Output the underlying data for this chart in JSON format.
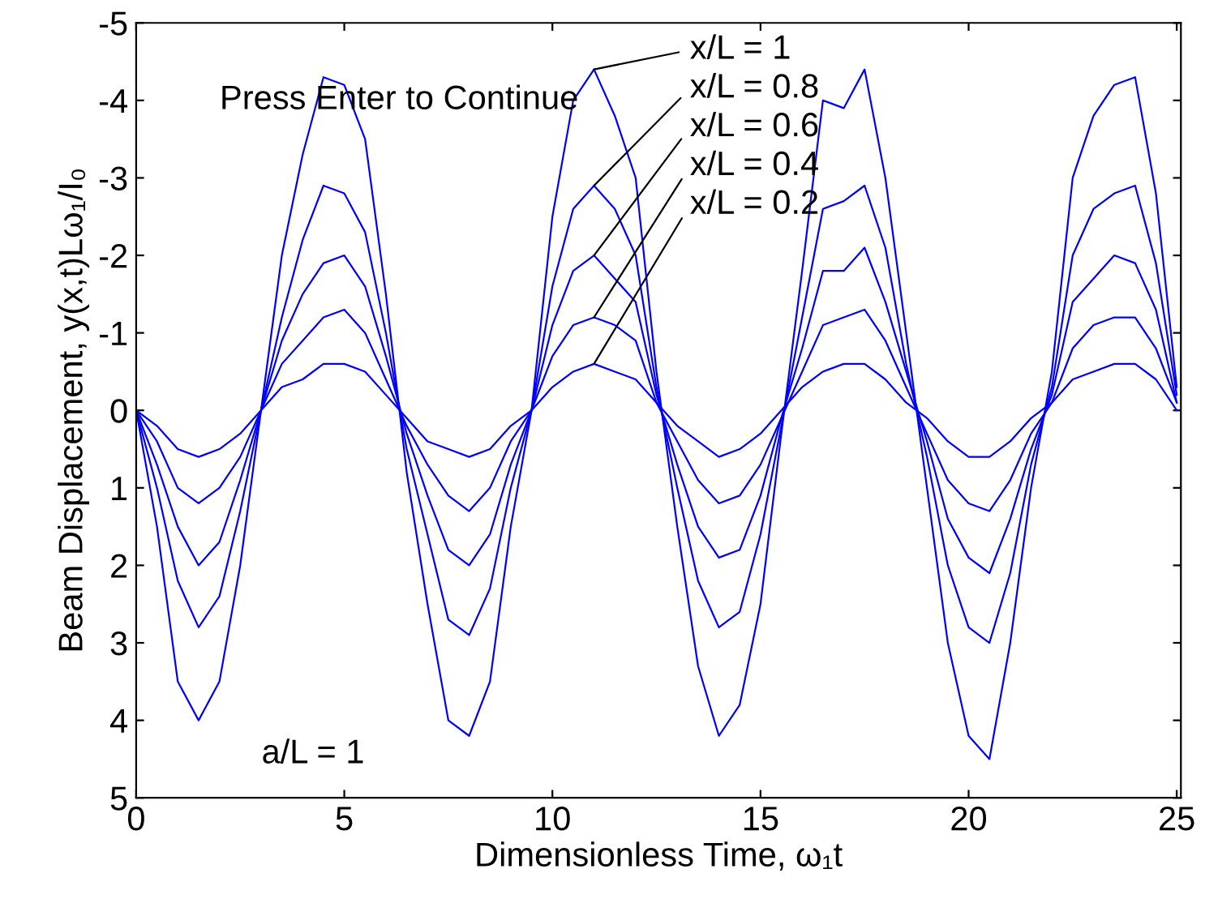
{
  "chart_data": {
    "type": "line",
    "xlabel": "Dimensionless Time, ω₁t",
    "ylabel": "Beam Displacement, y(x,t)Lω₁/I₀",
    "x": [
      0,
      0.5,
      1,
      1.5,
      2,
      2.5,
      3,
      3.5,
      4,
      4.5,
      5,
      5.5,
      6,
      6.5,
      7,
      7.5,
      8,
      8.5,
      9,
      9.5,
      10,
      10.5,
      11,
      11.5,
      12,
      12.5,
      13,
      13.5,
      14,
      14.5,
      15,
      15.5,
      16,
      16.5,
      17,
      17.5,
      18,
      18.5,
      19,
      19.5,
      20,
      20.5,
      21,
      21.5,
      22,
      22.5,
      23,
      23.5,
      24,
      24.5,
      25
    ],
    "series": [
      {
        "name": "x/L = 1",
        "color": "#0000ff",
        "values": [
          0,
          1.5,
          3.5,
          4.0,
          3.5,
          2.0,
          0.0,
          -2.0,
          -3.3,
          -4.3,
          -4.2,
          -3.5,
          -1.5,
          0.8,
          2.5,
          4.0,
          4.2,
          3.5,
          1.5,
          0.0,
          -2.5,
          -4.0,
          -4.4,
          -3.8,
          -3.0,
          -0.5,
          1.5,
          3.3,
          4.2,
          3.8,
          2.5,
          0.3,
          -1.8,
          -4.0,
          -3.9,
          -4.4,
          -3.0,
          -1.0,
          1.0,
          3.0,
          4.2,
          4.5,
          3.0,
          1.0,
          -0.5,
          -3.0,
          -3.8,
          -4.2,
          -4.3,
          -2.8,
          -0.3
        ]
      },
      {
        "name": "x/L = 0.8",
        "color": "#0000ff",
        "values": [
          0,
          1.0,
          2.2,
          2.8,
          2.4,
          1.3,
          0.0,
          -1.2,
          -2.2,
          -2.9,
          -2.8,
          -2.3,
          -1.0,
          0.5,
          1.6,
          2.7,
          2.9,
          2.3,
          1.0,
          0.0,
          -1.6,
          -2.6,
          -2.9,
          -2.6,
          -2.0,
          -0.3,
          1.0,
          2.2,
          2.8,
          2.6,
          1.6,
          0.2,
          -1.2,
          -2.6,
          -2.7,
          -2.9,
          -2.1,
          -0.6,
          0.6,
          2.0,
          2.8,
          3.0,
          2.1,
          0.7,
          -0.3,
          -2.0,
          -2.6,
          -2.8,
          -2.9,
          -1.9,
          -0.2
        ]
      },
      {
        "name": "x/L = 0.6",
        "color": "#0000ff",
        "values": [
          0,
          0.7,
          1.5,
          2.0,
          1.7,
          0.9,
          0.0,
          -0.9,
          -1.5,
          -1.9,
          -2.0,
          -1.6,
          -0.7,
          0.3,
          1.1,
          1.8,
          2.0,
          1.6,
          0.7,
          0.0,
          -1.1,
          -1.8,
          -2.0,
          -1.7,
          -1.4,
          -0.2,
          0.7,
          1.5,
          1.9,
          1.8,
          1.1,
          0.1,
          -0.8,
          -1.8,
          -1.8,
          -2.1,
          -1.4,
          -0.5,
          0.4,
          1.4,
          1.9,
          2.1,
          1.4,
          0.5,
          -0.2,
          -1.4,
          -1.7,
          -2.0,
          -1.9,
          -1.3,
          -0.1
        ]
      },
      {
        "name": "x/L = 0.4",
        "color": "#0000ff",
        "values": [
          0,
          0.4,
          1.0,
          1.2,
          1.0,
          0.6,
          0.0,
          -0.6,
          -0.9,
          -1.2,
          -1.3,
          -1.0,
          -0.4,
          0.2,
          0.7,
          1.1,
          1.3,
          1.0,
          0.4,
          0.0,
          -0.7,
          -1.1,
          -1.2,
          -1.1,
          -0.9,
          -0.1,
          0.4,
          0.9,
          1.2,
          1.1,
          0.7,
          0.1,
          -0.5,
          -1.1,
          -1.2,
          -1.3,
          -0.9,
          -0.3,
          0.3,
          0.9,
          1.2,
          1.3,
          0.9,
          0.3,
          -0.1,
          -0.8,
          -1.1,
          -1.2,
          -1.2,
          -0.8,
          -0.1
        ]
      },
      {
        "name": "x/L = 0.2",
        "color": "#0000ff",
        "values": [
          0,
          0.2,
          0.5,
          0.6,
          0.5,
          0.3,
          0.0,
          -0.3,
          -0.4,
          -0.6,
          -0.6,
          -0.5,
          -0.2,
          0.1,
          0.4,
          0.5,
          0.6,
          0.5,
          0.2,
          0.0,
          -0.3,
          -0.5,
          -0.6,
          -0.5,
          -0.4,
          -0.1,
          0.2,
          0.4,
          0.6,
          0.5,
          0.3,
          0.0,
          -0.3,
          -0.5,
          -0.6,
          -0.6,
          -0.4,
          -0.1,
          0.1,
          0.4,
          0.6,
          0.6,
          0.4,
          0.1,
          -0.1,
          -0.4,
          -0.5,
          -0.6,
          -0.6,
          -0.4,
          0.0
        ]
      }
    ],
    "annotations": [
      "Press Enter to Continue",
      "a/L = 1"
    ],
    "xlim": [
      0,
      25.1
    ],
    "ylim": [
      5,
      -5
    ],
    "xticks": [
      0,
      5,
      10,
      15,
      20,
      25
    ],
    "yticks": [
      -5,
      -4,
      -3,
      -2,
      -1,
      0,
      1,
      2,
      3,
      4,
      5
    ],
    "grid": false,
    "legend": false,
    "marker": "none",
    "line_style": "solid"
  }
}
